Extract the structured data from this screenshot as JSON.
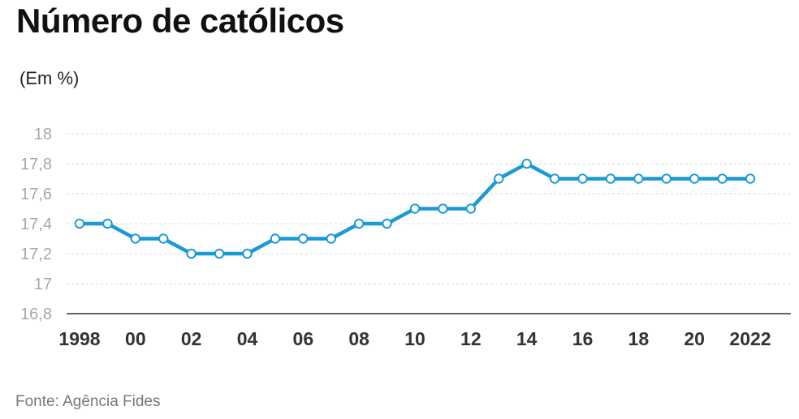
{
  "title": "Número de católicos",
  "unit_label": "(Em %)",
  "source": "Fonte: Agência Fides",
  "chart_data": {
    "type": "line",
    "title": "Número de católicos",
    "ylabel": "(Em %)",
    "xlabel": "",
    "x": [
      1998,
      1999,
      2000,
      2001,
      2002,
      2003,
      2004,
      2005,
      2006,
      2007,
      2008,
      2009,
      2010,
      2011,
      2012,
      2013,
      2014,
      2015,
      2016,
      2017,
      2018,
      2019,
      2020,
      2021,
      2022
    ],
    "series": [
      {
        "values": [
          17.4,
          17.4,
          17.3,
          17.3,
          17.2,
          17.2,
          17.2,
          17.3,
          17.3,
          17.3,
          17.4,
          17.4,
          17.5,
          17.5,
          17.5,
          17.7,
          17.8,
          17.7,
          17.7,
          17.7,
          17.7,
          17.7,
          17.7,
          17.7,
          17.7
        ],
        "color": "#1a9ad6"
      }
    ],
    "ylim": [
      16.8,
      18
    ],
    "yticks": [
      "16,8",
      "17",
      "17,2",
      "17,4",
      "17,6",
      "17,8",
      "18"
    ],
    "ytick_values": [
      16.8,
      17,
      17.2,
      17.4,
      17.6,
      17.8,
      18
    ],
    "xticks": [
      "1998",
      "00",
      "02",
      "04",
      "06",
      "08",
      "10",
      "12",
      "14",
      "16",
      "18",
      "20",
      "2022"
    ],
    "xtick_values": [
      1998,
      2000,
      2002,
      2004,
      2006,
      2008,
      2010,
      2012,
      2014,
      2016,
      2018,
      2020,
      2022
    ],
    "grid": true,
    "gridline_color": "#d9d9d9",
    "axis_color": "#333333"
  }
}
